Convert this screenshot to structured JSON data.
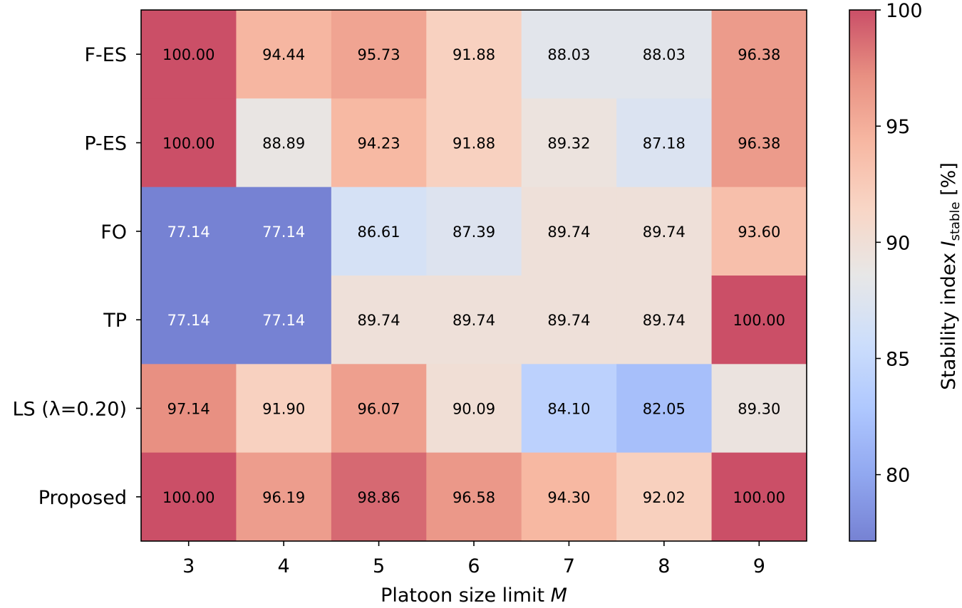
{
  "chart_data": {
    "type": "heatmap",
    "rows": [
      "F-ES",
      "P-ES",
      "FO",
      "TP",
      "LS (λ=0.20)",
      "Proposed"
    ],
    "columns": [
      "3",
      "4",
      "5",
      "6",
      "7",
      "8",
      "9"
    ],
    "values": [
      [
        100.0,
        94.44,
        95.73,
        91.88,
        88.03,
        88.03,
        96.38
      ],
      [
        100.0,
        88.89,
        94.23,
        91.88,
        89.32,
        87.18,
        96.38
      ],
      [
        77.14,
        77.14,
        86.61,
        87.39,
        89.74,
        89.74,
        93.6
      ],
      [
        77.14,
        77.14,
        89.74,
        89.74,
        89.74,
        89.74,
        100.0
      ],
      [
        97.14,
        91.9,
        96.07,
        90.09,
        84.1,
        82.05,
        89.3
      ],
      [
        100.0,
        96.19,
        98.86,
        96.58,
        94.3,
        92.02,
        100.0
      ]
    ],
    "value_labels": [
      [
        "100.00",
        "94.44",
        "95.73",
        "91.88",
        "88.03",
        "88.03",
        "96.38"
      ],
      [
        "100.00",
        "88.89",
        "94.23",
        "91.88",
        "89.32",
        "87.18",
        "96.38"
      ],
      [
        "77.14",
        "77.14",
        "86.61",
        "87.39",
        "89.74",
        "89.74",
        "93.60"
      ],
      [
        "77.14",
        "77.14",
        "89.74",
        "89.74",
        "89.74",
        "89.74",
        "100.00"
      ],
      [
        "97.14",
        "91.90",
        "96.07",
        "90.09",
        "84.10",
        "82.05",
        "89.30"
      ],
      [
        "100.00",
        "96.19",
        "98.86",
        "96.58",
        "94.30",
        "92.02",
        "100.00"
      ]
    ],
    "xlabel": "Platoon size limit",
    "xlabel_var": "M",
    "colorbar": {
      "label_prefix": "Stability index ",
      "label_var": "I",
      "label_sub": "stable",
      "label_suffix": " [%]",
      "range": [
        77.14,
        100
      ],
      "ticks": [
        "80",
        "85",
        "90",
        "95",
        "100"
      ],
      "tick_values": [
        80,
        85,
        90,
        95,
        100
      ],
      "colormap": "coolwarm"
    }
  }
}
